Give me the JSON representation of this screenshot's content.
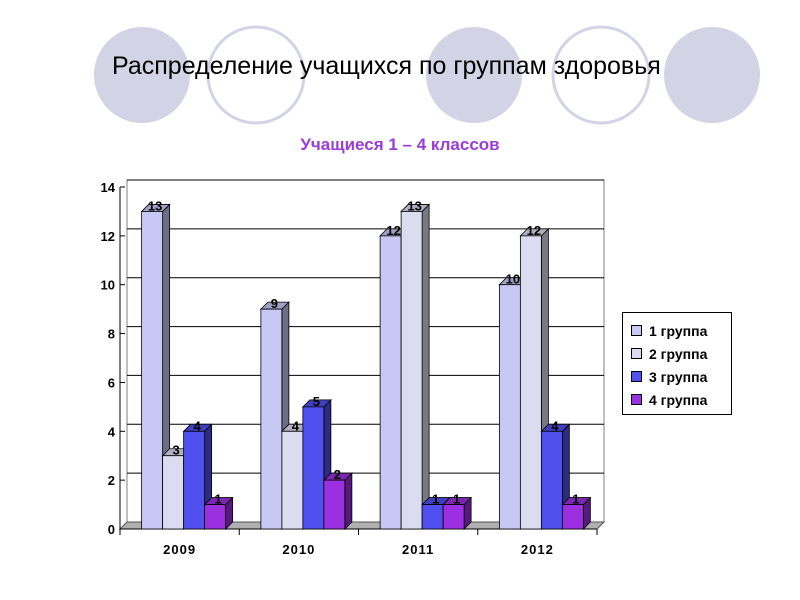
{
  "slide": {
    "title": "Распределение учащихся по группам здоровья"
  },
  "chart_data": {
    "type": "bar",
    "title": "Учащиеся 1 – 4 классов",
    "xlabel": "",
    "ylabel": "",
    "categories": [
      "2009",
      "2010",
      "2011",
      "2012"
    ],
    "series": [
      {
        "name": "1 группа",
        "values": [
          13,
          9,
          12,
          10
        ],
        "color": "#c8c8f5"
      },
      {
        "name": "2 группа",
        "values": [
          3,
          4,
          13,
          12
        ],
        "color": "#dcdcf0"
      },
      {
        "name": "3 группа",
        "values": [
          4,
          5,
          1,
          4
        ],
        "color": "#5050ee"
      },
      {
        "name": "4 группа",
        "values": [
          1,
          2,
          1,
          1
        ],
        "color": "#9b30e0"
      }
    ],
    "ylim": [
      0,
      14
    ],
    "yticks": [
      "0",
      "2",
      "4",
      "6",
      "8",
      "10",
      "12",
      "14"
    ],
    "grid": true,
    "legend_position": "right",
    "title_color": "#9a3dd6"
  }
}
